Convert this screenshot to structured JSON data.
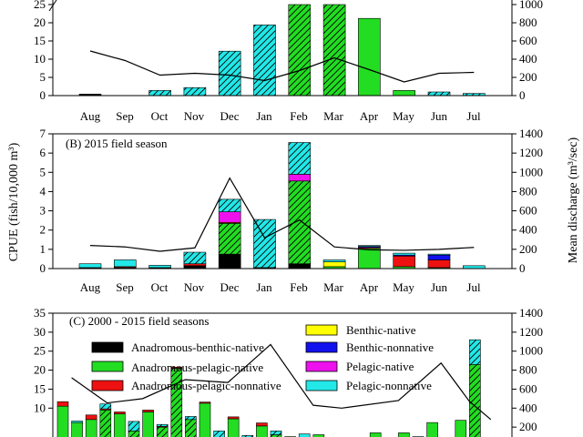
{
  "figure": {
    "y_axis_label": "CPUE (fish/10,000 m³)",
    "right_axis_label": "Mean discharge (m³/sec)",
    "month_labels": [
      "Aug",
      "Sep",
      "Oct",
      "Nov",
      "Dec",
      "Jan",
      "Feb",
      "Mar",
      "Apr",
      "May",
      "Jun",
      "Jul"
    ]
  },
  "legend": [
    {
      "key": "abn",
      "label": "Anadromous-benthic-native",
      "color": "#000000",
      "hatched": false
    },
    {
      "key": "apn",
      "label": "Anadromous-pelagic-native",
      "color": "#22dd22",
      "hatched": false
    },
    {
      "key": "apnn",
      "label": "Anadromous-pelagic-nonnative",
      "color": "#ee1111",
      "hatched": false
    },
    {
      "key": "bn",
      "label": "Benthic-native",
      "color": "#ffff00",
      "hatched": false
    },
    {
      "key": "bnn",
      "label": "Benthic-nonnative",
      "color": "#1111ee",
      "hatched": false
    },
    {
      "key": "pn",
      "label": "Pelagic-native",
      "color": "#ee11ee",
      "hatched": false
    },
    {
      "key": "pnn",
      "label": "Pelagic-nonnative",
      "color": "#22e8e8",
      "hatched": false
    }
  ],
  "chart_data": [
    {
      "type": "bar",
      "panel": "A",
      "title": "",
      "categories": [
        "Aug",
        "Sep",
        "Oct",
        "Nov",
        "Dec",
        "Jan",
        "Feb",
        "Mar",
        "Apr",
        "May",
        "Jun",
        "Jul"
      ],
      "ylim": [
        0,
        25
      ],
      "yticks": [
        0,
        5,
        10,
        15,
        20,
        25
      ],
      "y2lim": [
        0,
        1000
      ],
      "y2ticks": [
        0,
        200,
        400,
        600,
        800,
        1000
      ],
      "series": [
        {
          "key": "abn",
          "values": [
            0.4,
            0,
            0,
            0,
            0,
            0,
            0,
            0,
            0,
            0,
            0,
            0
          ]
        },
        {
          "key": "apn",
          "values": [
            0,
            0,
            0,
            0,
            0,
            0,
            25,
            25,
            21.2,
            1.4,
            0,
            0
          ]
        },
        {
          "key": "pnn",
          "values": [
            0,
            0,
            1.4,
            2.2,
            12.2,
            19.4,
            0,
            0,
            0,
            0,
            1.0,
            0.6
          ]
        }
      ],
      "hatched": [
        false,
        false,
        true,
        true,
        true,
        true,
        true,
        true,
        false,
        false,
        true,
        true
      ],
      "discharge": [
        490,
        385,
        225,
        245,
        225,
        165,
        275,
        415,
        285,
        150,
        245,
        255
      ]
    },
    {
      "type": "bar",
      "panel": "B",
      "title": "(B) 2015 field season",
      "categories": [
        "Aug",
        "Sep",
        "Oct",
        "Nov",
        "Dec",
        "Jan",
        "Feb",
        "Mar",
        "Apr",
        "May",
        "Jun",
        "Jul"
      ],
      "ylim": [
        0,
        7
      ],
      "yticks": [
        0,
        1,
        2,
        3,
        4,
        5,
        6,
        7
      ],
      "y2lim": [
        0,
        1400
      ],
      "y2ticks": [
        0,
        200,
        400,
        600,
        800,
        1000,
        1200,
        1400
      ],
      "series": [
        {
          "key": "abn",
          "values": [
            0.05,
            0.05,
            0.05,
            0.15,
            0.75,
            0.05,
            0.25,
            0,
            0,
            0,
            0,
            0
          ]
        },
        {
          "key": "apn",
          "values": [
            0,
            0,
            0,
            0,
            1.6,
            0,
            4.3,
            0.1,
            1.05,
            0.1,
            0.05,
            0
          ]
        },
        {
          "key": "apnn",
          "values": [
            0,
            0.05,
            0,
            0.1,
            0.05,
            0,
            0,
            0,
            0.05,
            0.55,
            0.4,
            0
          ]
        },
        {
          "key": "bn",
          "values": [
            0,
            0,
            0,
            0,
            0,
            0,
            0,
            0.25,
            0,
            0,
            0,
            0
          ]
        },
        {
          "key": "bnn",
          "values": [
            0,
            0,
            0,
            0,
            0,
            0,
            0,
            0,
            0.05,
            0.05,
            0.25,
            0
          ]
        },
        {
          "key": "pn",
          "values": [
            0,
            0,
            0,
            0,
            0.55,
            0,
            0.35,
            0,
            0,
            0,
            0,
            0
          ]
        },
        {
          "key": "pnn",
          "values": [
            0.2,
            0.35,
            0.12,
            0.6,
            0.65,
            2.5,
            1.65,
            0.1,
            0.05,
            0.1,
            0.05,
            0.15
          ]
        }
      ],
      "hatched": [
        false,
        false,
        false,
        true,
        true,
        true,
        true,
        false,
        false,
        false,
        false,
        false
      ],
      "discharge": [
        240,
        225,
        180,
        215,
        940,
        320,
        505,
        225,
        195,
        190,
        200,
        220
      ]
    },
    {
      "type": "bar",
      "panel": "C",
      "title": "(C) 2000 - 2015 field seasons",
      "ylim": [
        0,
        35
      ],
      "yticks": [
        10,
        15,
        20,
        25,
        30,
        35
      ],
      "yticklabels": [
        "10",
        "15",
        "20",
        "25",
        "30",
        "35"
      ],
      "y2lim": [
        0,
        1400
      ],
      "y2ticks": [
        200,
        400,
        600,
        800,
        1000,
        1200,
        1400
      ],
      "bars": [
        {
          "abn": 0,
          "apn": 10.5,
          "apnn": 1.2,
          "pnn": 0,
          "hatched": false
        },
        {
          "abn": 0,
          "apn": 6.2,
          "apnn": 0,
          "pnn": 0.4,
          "hatched": false
        },
        {
          "abn": 0,
          "apn": 7.0,
          "apnn": 1.2,
          "pnn": 0,
          "hatched": false
        },
        {
          "abn": 0,
          "apn": 9.5,
          "apnn": 0.3,
          "pnn": 1.3,
          "hatched": true
        },
        {
          "abn": 0,
          "apn": 8.5,
          "apnn": 0.5,
          "pnn": 0,
          "hatched": false
        },
        {
          "abn": 0,
          "apn": 4.0,
          "apnn": 0,
          "pnn": 2.5,
          "hatched": true
        },
        {
          "abn": 0,
          "apn": 9.0,
          "apnn": 0.5,
          "pnn": 0,
          "hatched": false
        },
        {
          "abn": 0,
          "apn": 5.0,
          "apnn": 0.2,
          "pnn": 0.5,
          "hatched": true
        },
        {
          "abn": 0,
          "apn": 20.5,
          "apnn": 0.3,
          "pnn": 0,
          "hatched": true
        },
        {
          "abn": 0,
          "apn": 7.0,
          "apnn": 0,
          "pnn": 0.8,
          "hatched": true
        },
        {
          "abn": 0,
          "apn": 11.3,
          "apnn": 0.3,
          "pnn": 0,
          "hatched": false
        },
        {
          "abn": 0,
          "apn": 0,
          "apnn": 0,
          "pnn": 4.0,
          "hatched": true
        },
        {
          "abn": 0,
          "apn": 7.2,
          "apnn": 0.5,
          "pnn": 0,
          "hatched": false
        },
        {
          "abn": 0,
          "apn": 0,
          "apnn": 0,
          "pnn": 2.8,
          "hatched": true
        },
        {
          "abn": 0,
          "apn": 5.3,
          "apnn": 0.8,
          "pnn": 0,
          "hatched": false
        },
        {
          "abn": 0,
          "apn": 3.0,
          "apnn": 0,
          "pnn": 1.0,
          "hatched": true
        },
        {
          "abn": 0,
          "apn": 2.5,
          "apnn": 0,
          "pnn": 0,
          "hatched": false
        },
        {
          "abn": 0,
          "apn": 0,
          "apnn": 0,
          "pnn": 3.2,
          "hatched": false
        },
        {
          "abn": 0,
          "apn": 3.0,
          "apnn": 0,
          "pnn": 0,
          "hatched": false
        },
        {
          "abn": 0,
          "apn": 0,
          "apnn": 0,
          "pnn": 0,
          "hatched": false
        },
        {
          "abn": 0,
          "apn": 0,
          "apnn": 0,
          "pnn": 0,
          "hatched": false
        },
        {
          "abn": 0,
          "apn": 0,
          "apnn": 0,
          "pnn": 0,
          "hatched": false
        },
        {
          "abn": 0,
          "apn": 3.5,
          "apnn": 0,
          "pnn": 0,
          "hatched": false
        },
        {
          "abn": 0,
          "apn": 0,
          "apnn": 0,
          "pnn": 0,
          "hatched": false
        },
        {
          "abn": 0,
          "apn": 3.5,
          "apnn": 0,
          "pnn": 0,
          "hatched": false
        },
        {
          "abn": 0,
          "apn": 0,
          "apnn": 0,
          "pnn": 2.5,
          "hatched": false
        },
        {
          "abn": 0,
          "apn": 6.2,
          "apnn": 0,
          "pnn": 0,
          "hatched": false
        },
        {
          "abn": 0,
          "apn": 0,
          "apnn": 0,
          "pnn": 0,
          "hatched": false
        },
        {
          "abn": 0,
          "apn": 6.8,
          "apnn": 0,
          "pnn": 0,
          "hatched": false
        },
        {
          "abn": 0,
          "apn": 21.5,
          "apnn": 0,
          "pnn": 6.5,
          "hatched": true
        }
      ],
      "discharge_x": [
        1,
        3.5,
        6,
        9,
        12,
        15,
        18,
        20,
        24,
        27,
        29,
        30.5
      ],
      "discharge": [
        720,
        455,
        500,
        700,
        670,
        1070,
        430,
        400,
        480,
        875,
        470,
        280
      ]
    }
  ]
}
